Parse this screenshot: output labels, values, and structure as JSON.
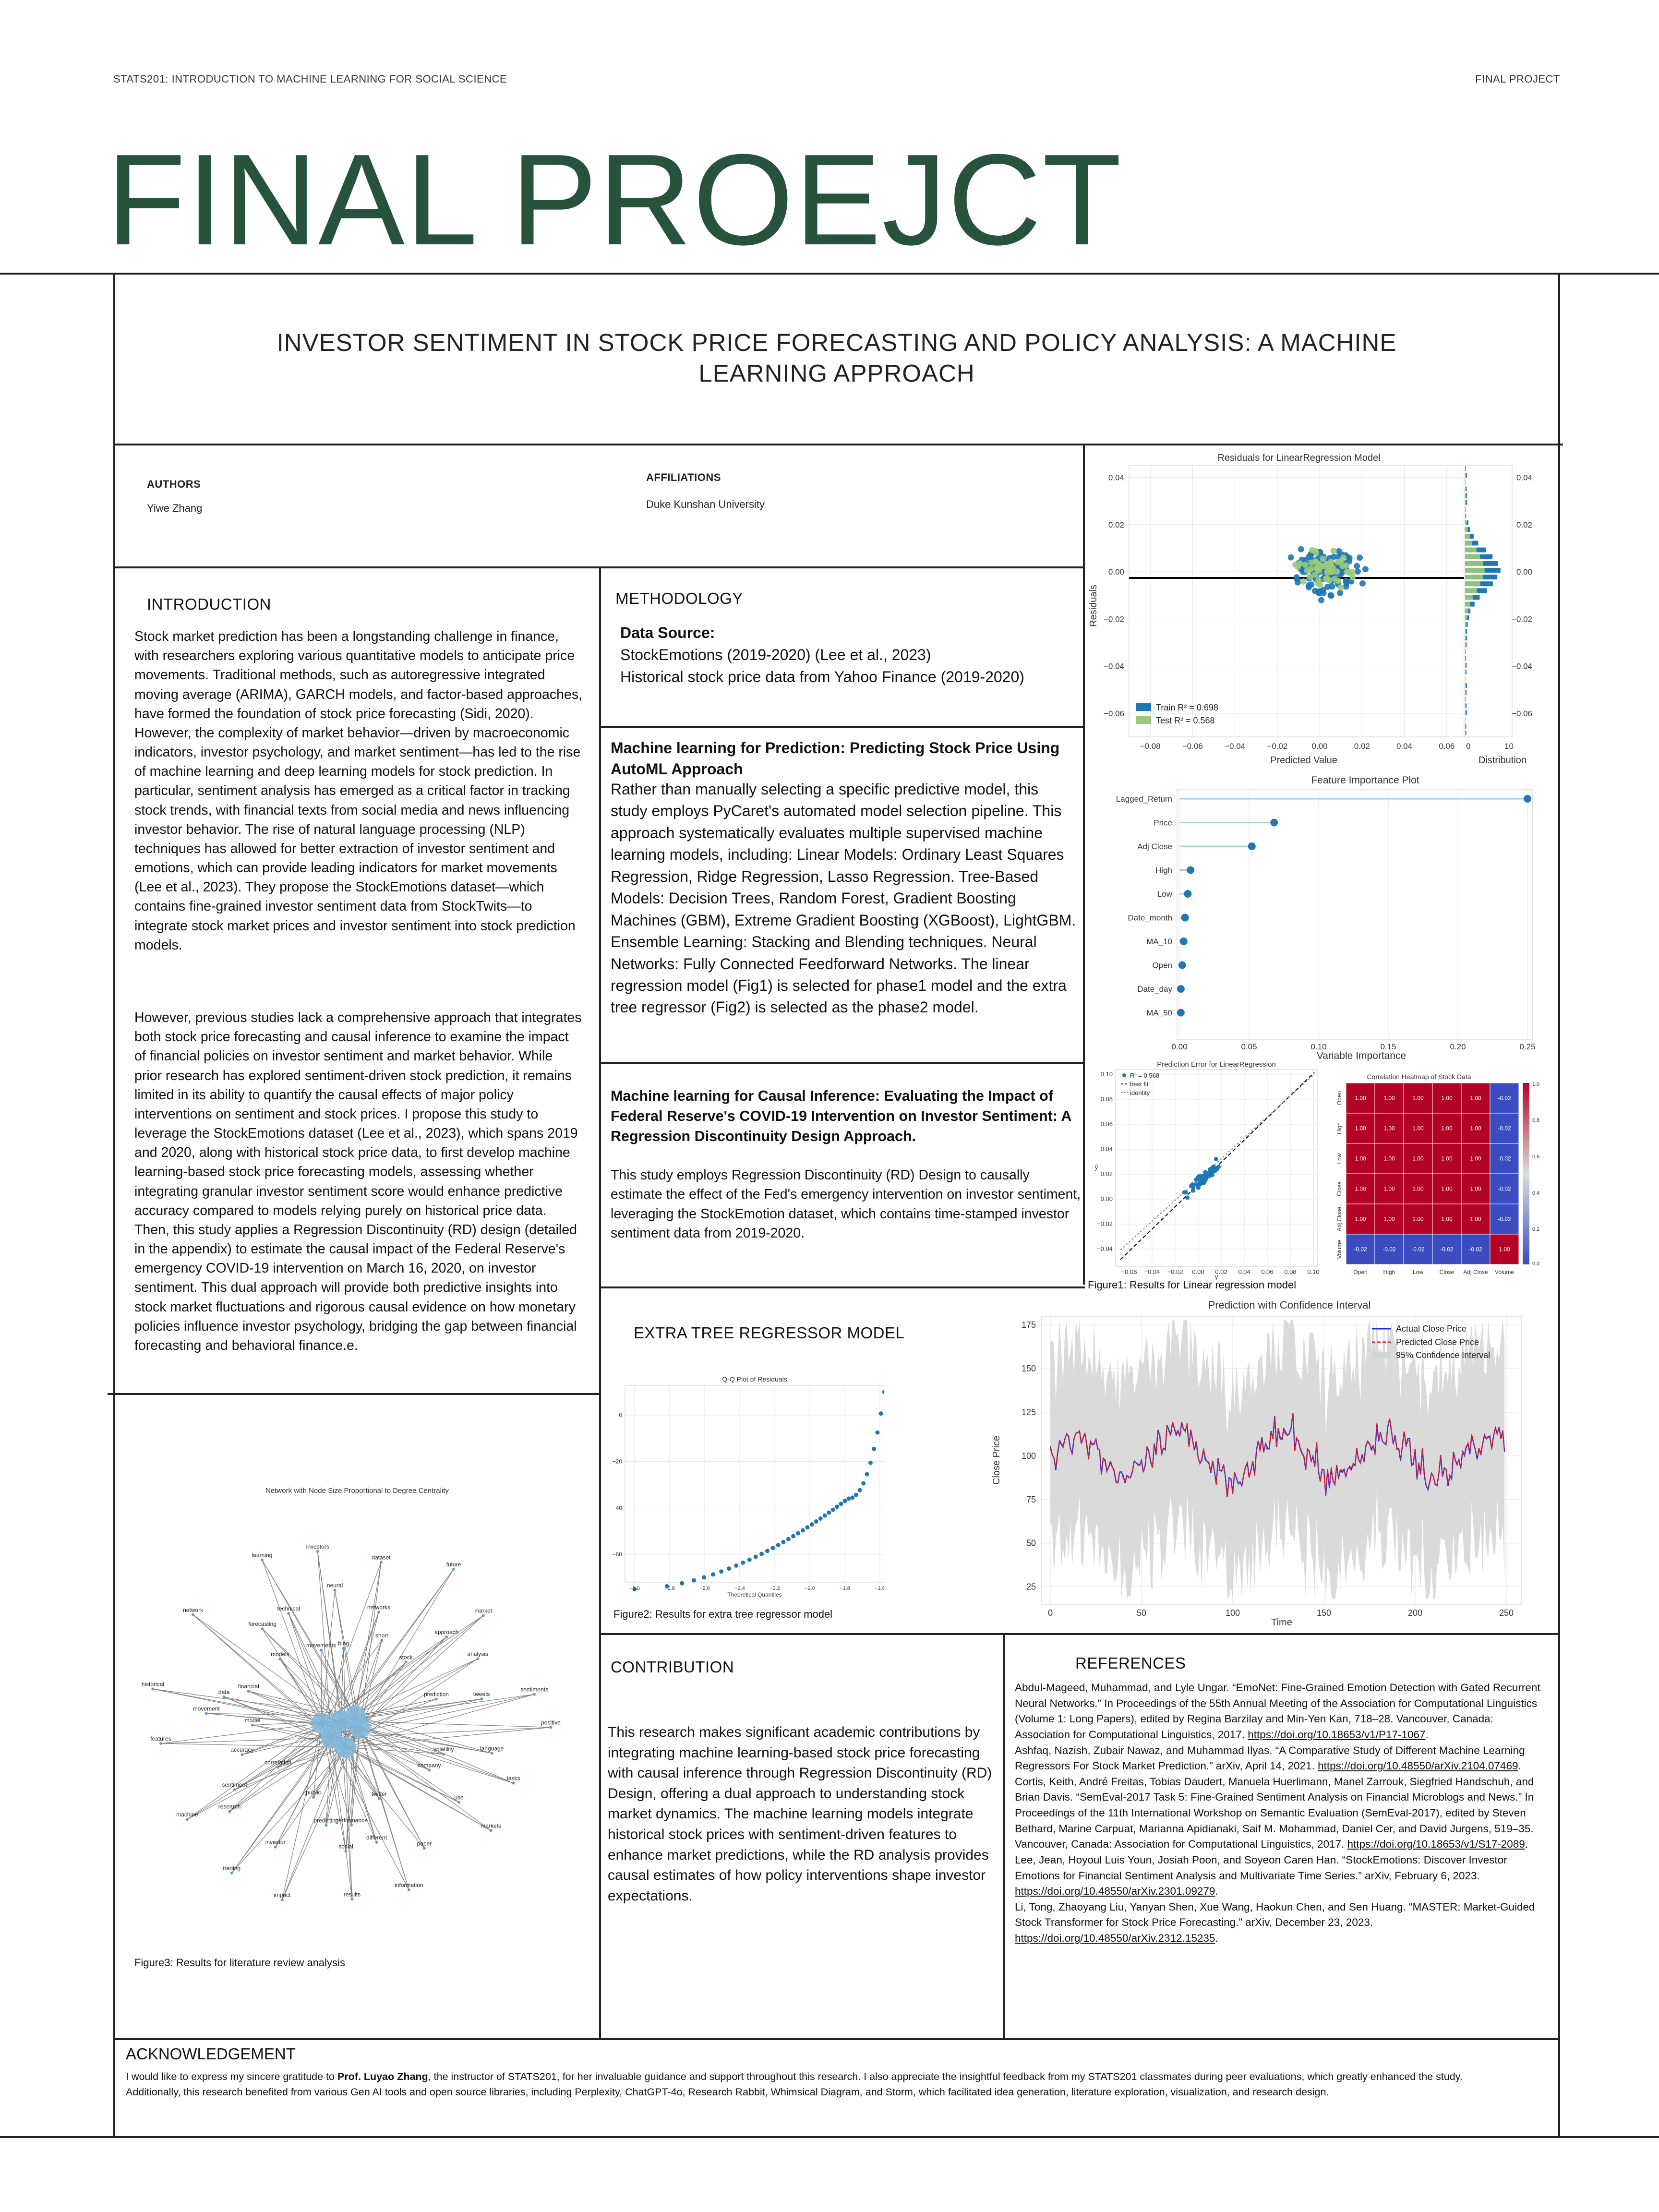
{
  "header": {
    "course": "STATS201: INTRODUCTION TO MACHINE LEARNING FOR SOCIAL SCIENCE",
    "tag": "FINAL PROJECT",
    "title": "FINAL PROEJCT"
  },
  "paper": {
    "title_line1": "INVESTOR SENTIMENT IN STOCK PRICE FORECASTING AND POLICY ANALYSIS: A MACHINE",
    "title_line2": "LEARNING APPROACH"
  },
  "authors": {
    "label": "AUTHORS",
    "value": "Yiwe Zhang"
  },
  "affiliations": {
    "label": "AFFILIATIONS",
    "value": "Duke Kunshan University"
  },
  "introduction": {
    "title": "INTRODUCTION",
    "p1": "Stock market prediction has been a longstanding challenge in finance, with researchers exploring various quantitative models to anticipate price movements. Traditional methods, such as autoregressive integrated moving average (ARIMA), GARCH models, and factor-based approaches, have formed the foundation of stock price forecasting (Sidi, 2020). However, the complexity of market behavior—driven by macroeconomic indicators, investor psychology, and market sentiment—has led to the rise of machine learning and deep learning models for stock prediction. In particular, sentiment analysis has emerged as a critical factor in tracking stock trends, with financial texts from social media and news influencing investor behavior. The rise of natural language processing (NLP) techniques has allowed for better extraction of investor sentiment and emotions, which can provide leading indicators for market movements (Lee et al., 2023). They propose the StockEmotions dataset—which contains fine-grained investor sentiment data from StockTwits—to integrate stock market prices and investor sentiment into stock prediction models.",
    "p2": "However, previous studies lack a comprehensive approach that integrates both stock price forecasting and causal inference to examine the impact of financial policies on investor sentiment and market behavior. While prior research has explored sentiment-driven stock prediction, it remains limited in its ability to quantify the causal effects of major policy interventions on sentiment and stock prices. I propose this study to leverage the StockEmotions dataset (Lee et al., 2023), which spans 2019 and 2020, along with historical stock price data, to first develop machine learning-based stock price forecasting models, assessing whether integrating granular investor sentiment score would enhance predictive accuracy compared to models relying purely on historical price data. Then, this study applies a Regression Discontinuity (RD) design (detailed in the appendix) to estimate the causal impact of the Federal Reserve's emergency COVID-19 intervention on March 16, 2020, on investor sentiment. This dual approach will provide both predictive insights into stock market fluctuations and rigorous causal evidence on how monetary policies influence investor psychology, bridging the gap between financial forecasting and behavioral finance.e."
  },
  "methodology": {
    "title": "METHODOLOGY",
    "data_source_label": "Data Source:",
    "data_source_1": "StockEmotions (2019-2020) (Lee et al., 2023)",
    "data_source_2": "Historical stock price data from Yahoo Finance (2019-2020)",
    "ml_pred_title": "Machine learning  for Prediction: Predicting Stock Price Using AutoML Approach",
    "ml_pred_text": "Rather than manually selecting a specific predictive model, this study employs PyCaret's automated model selection pipeline. This approach systematically evaluates multiple supervised machine learning models, including: Linear Models: Ordinary Least Squares Regression, Ridge Regression, Lasso Regression. Tree-Based Models: Decision Trees, Random Forest, Gradient Boosting Machines (GBM), Extreme Gradient Boosting (XGBoost), LightGBM. Ensemble Learning: Stacking and Blending techniques. Neural Networks: Fully Connected Feedforward Networks. The linear regression model (Fig1) is selected for phase1 model and the extra tree regressor (Fig2) is selected as the phase2 model.",
    "ml_causal_title": "Machine learning  for Causal Inference: Evaluating the Impact of Federal Reserve's COVID-19 Intervention on Investor Sentiment: A Regression Discontinuity Design Approach.",
    "ml_causal_text": "This study employs Regression Discontinuity (RD) Design to causally estimate the effect of the Fed's emergency intervention on investor sentiment, leveraging the StockEmotion dataset, which contains time-stamped investor sentiment data from 2019-2020."
  },
  "extra_tree": {
    "title": "EXTRA TREE REGRESSOR MODEL",
    "qq_title": "Q-Q Plot of Residuals",
    "qq_xlabel": "Theoretical Quantiles",
    "caption": "Figure2: Results for extra tree regressor model"
  },
  "figure1": {
    "residuals_title": "Residuals for LinearRegression Model",
    "residuals_ylabel": "Residuals",
    "residuals_xlabel": "Predicted Value",
    "distribution_label": "Distribution",
    "train_legend": "Train R² = 0.698",
    "test_legend": "Test R² = 0.568",
    "fi_title": "Feature Importance Plot",
    "fi_xlabel": "Variable Importance",
    "fi_features": [
      "Lagged_Return",
      "Price",
      "Adj Close",
      "High",
      "Low",
      "Date_month",
      "MA_10",
      "Open",
      "Date_day",
      "MA_50"
    ],
    "fi_values": [
      0.25,
      0.068,
      0.052,
      0.008,
      0.006,
      0.004,
      0.003,
      0.002,
      0.001,
      0.001
    ],
    "pe_title": "Prediction Error for LinearRegression",
    "pe_legend": [
      "R² = 0.568",
      "best fit",
      "identity"
    ],
    "heat_title": "Correlation Heatmap of Stock Data",
    "heat_labels": [
      "Open",
      "High",
      "Low",
      "Close",
      "Adj Close",
      "Volume"
    ],
    "caption": "Figure1: Results for Linear regression model"
  },
  "prediction_chart": {
    "title": "Prediction with Confidence Interval",
    "ylabel": "Close Price",
    "xlabel": "Time",
    "legend": [
      "Actual Close Price",
      "Predicted Close Price",
      "95% Confidence Interval"
    ]
  },
  "network": {
    "title": "Network with Node Size Proportional to Degree Centrality",
    "caption": "Figure3: Results for literature review analysis",
    "words": [
      "positive",
      "language",
      "volatility",
      "tasks",
      "use",
      "company",
      "markets",
      "paper",
      "twitter",
      "information",
      "different",
      "performance",
      "results",
      "social",
      "predicting",
      "impact",
      "investor",
      "public",
      "trading",
      "research",
      "correlation",
      "machine",
      "sentiment",
      "accuracy",
      "features",
      "movement",
      "model",
      "historical",
      "data",
      "financial",
      "network",
      "forecasting",
      "models",
      "learning",
      "technical",
      "movements",
      "investors",
      "neural",
      "blog",
      "dataset",
      "networks",
      "short",
      "future",
      "approach",
      "stock",
      "market",
      "analysis",
      "prediction",
      "sentiments",
      "tweets"
    ]
  },
  "contribution": {
    "title": "CONTRIBUTION",
    "text": "This research makes significant academic contributions by integrating machine learning-based stock price forecasting with causal inference through Regression Discontinuity (RD) Design, offering a dual approach to understanding stock market dynamics. The machine learning models integrate historical stock prices with sentiment-driven features to enhance market predictions, while the RD analysis provides causal estimates of how policy interventions shape investor expectations."
  },
  "references": {
    "title": "REFERENCES",
    "items": [
      {
        "text": "Abdul-Mageed, Muhammad, and Lyle Ungar. “EmoNet: Fine-Grained Emotion Detection with Gated Recurrent Neural Networks.” In Proceedings of the 55th Annual Meeting of the Association for Computational Linguistics (Volume 1: Long Papers), edited by Regina Barzilay and Min-Yen Kan, 718–28. Vancouver, Canada: Association for Computational Linguistics, 2017. ",
        "link": "https://doi.org/10.18653/v1/P17-1067",
        "tail": "."
      },
      {
        "text": "Ashfaq, Nazish, Zubair Nawaz, and Muhammad Ilyas. “A Comparative Study of Different Machine Learning Regressors For Stock Market Prediction.” arXiv, April 14, 2021. ",
        "link": "https://doi.org/10.48550/arXiv.2104.07469",
        "tail": "."
      },
      {
        "text": "Cortis, Keith, André Freitas, Tobias Daudert, Manuela Huerlimann, Manel Zarrouk, Siegfried Handschuh, and Brian Davis. “SemEval-2017 Task 5: Fine-Grained Sentiment Analysis on Financial Microblogs and News.” In Proceedings of the 11th International Workshop on Semantic Evaluation (SemEval-2017), edited by Steven Bethard, Marine Carpuat, Marianna Apidianaki, Saif M. Mohammad, Daniel Cer, and David Jurgens, 519–35. Vancouver, Canada: Association for Computational Linguistics, 2017. ",
        "link": "https://doi.org/10.18653/v1/S17-2089",
        "tail": "."
      },
      {
        "text": "Lee, Jean, Hoyoul Luis Youn, Josiah Poon, and Soyeon Caren Han. “StockEmotions: Discover Investor Emotions for Financial Sentiment Analysis and Multivariate Time Series.” arXiv, February 6, 2023. ",
        "link": "https://doi.org/10.48550/arXiv.2301.09279",
        "tail": "."
      },
      {
        "text": "Li, Tong, Zhaoyang Liu, Yanyan Shen, Xue Wang, Haokun Chen, and Sen Huang. “MASTER: Market-Guided Stock Transformer for Stock Price Forecasting.” arXiv, December 23, 2023. ",
        "link": "https://doi.org/10.48550/arXiv.2312.15235",
        "tail": "."
      }
    ]
  },
  "acknowledgement": {
    "title": "ACKNOWLEDGEMENT",
    "line1_pre": "I would like to express my sincere gratitude to ",
    "line1_bold": "Prof. Luyao Zhang",
    "line1_post": ", the instructor of STATS201, for her invaluable guidance and support throughout this research. I also appreciate the insightful feedback from my STATS201 classmates during peer evaluations, which greatly enhanced the study.",
    "line2": "Additionally, this research benefited from various Gen AI tools and open source libraries, including Perplexity, ChatGPT-4o, Research Rabbit, Whimsical Diagram, and Storm, which facilitated idea generation, literature exploration, visualization, and research design."
  },
  "chart_data": [
    {
      "type": "bar",
      "title": "Feature Importance Plot",
      "xlabel": "Variable Importance",
      "categories": [
        "Lagged_Return",
        "Price",
        "Adj Close",
        "High",
        "Low",
        "Date_month",
        "MA_10",
        "Open",
        "Date_day",
        "MA_50"
      ],
      "values": [
        0.25,
        0.068,
        0.052,
        0.008,
        0.006,
        0.004,
        0.003,
        0.002,
        0.001,
        0.001
      ],
      "xlim": [
        0,
        0.25
      ]
    },
    {
      "type": "heatmap",
      "title": "Correlation Heatmap of Stock Data",
      "labels": [
        "Open",
        "High",
        "Low",
        "Close",
        "Adj Close",
        "Volume"
      ],
      "values": [
        [
          1.0,
          1.0,
          1.0,
          1.0,
          1.0,
          -0.02
        ],
        [
          1.0,
          1.0,
          1.0,
          1.0,
          1.0,
          -0.02
        ],
        [
          1.0,
          1.0,
          1.0,
          1.0,
          1.0,
          -0.02
        ],
        [
          1.0,
          1.0,
          1.0,
          1.0,
          1.0,
          -0.02
        ],
        [
          1.0,
          1.0,
          1.0,
          1.0,
          1.0,
          -0.02
        ],
        [
          -0.02,
          -0.02,
          -0.02,
          -0.02,
          -0.02,
          1.0
        ]
      ]
    },
    {
      "type": "line",
      "title": "Prediction with Confidence Interval",
      "xlabel": "Time",
      "ylabel": "Close Price",
      "xlim": [
        0,
        250
      ],
      "ylim": [
        15,
        180
      ],
      "series": [
        {
          "name": "Actual Close Price"
        },
        {
          "name": "Predicted Close Price"
        },
        {
          "name": "95% Confidence Interval"
        }
      ]
    },
    {
      "type": "scatter",
      "title": "Residuals for LinearRegression Model",
      "xlabel": "Predicted Value",
      "ylabel": "Residuals",
      "xlim": [
        -0.09,
        0.075
      ],
      "ylim": [
        -0.07,
        0.045
      ],
      "series": [
        {
          "name": "Train R² = 0.698"
        },
        {
          "name": "Test R² = 0.568"
        }
      ]
    },
    {
      "type": "scatter",
      "title": "Q-Q Plot of Residuals",
      "xlabel": "Theoretical Quantiles"
    }
  ],
  "colors": {
    "title_green": "#27533d",
    "line_blue": "#1f2ee0",
    "line_red": "#e0202a",
    "heat_red": "#b40426",
    "heat_blue": "#3b4cc0",
    "train_blue": "#1f77b4",
    "test_green": "#9bc97a"
  }
}
